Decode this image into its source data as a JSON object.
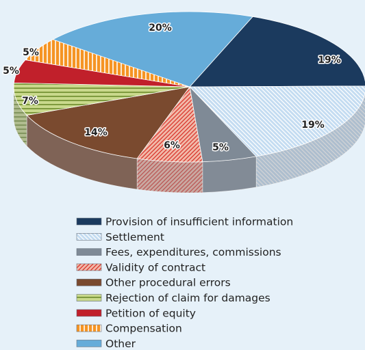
{
  "chart_data": {
    "type": "pie3d",
    "categories": [
      "Provision of insufficient information",
      "Settlement",
      "Fees, expenditures, commissions",
      "Validity of contract",
      "Other procedural errors",
      "Rejection of claim for damages",
      "Petition of equity",
      "Compensation",
      "Other"
    ],
    "values": [
      19,
      19,
      5,
      6,
      14,
      7,
      5,
      5,
      20
    ],
    "value_labels": [
      "19%",
      "19%",
      "5%",
      "6%",
      "14%",
      "7%",
      "5%",
      "5%",
      "20%"
    ],
    "colors": [
      "#1b3a5e",
      "#c4dcf1",
      "#7f8a96",
      "#f1b9a9",
      "#7a4a2f",
      "#c9d98c",
      "#c1202b",
      "#f59423",
      "#66acd9"
    ],
    "legend": "bottom"
  }
}
